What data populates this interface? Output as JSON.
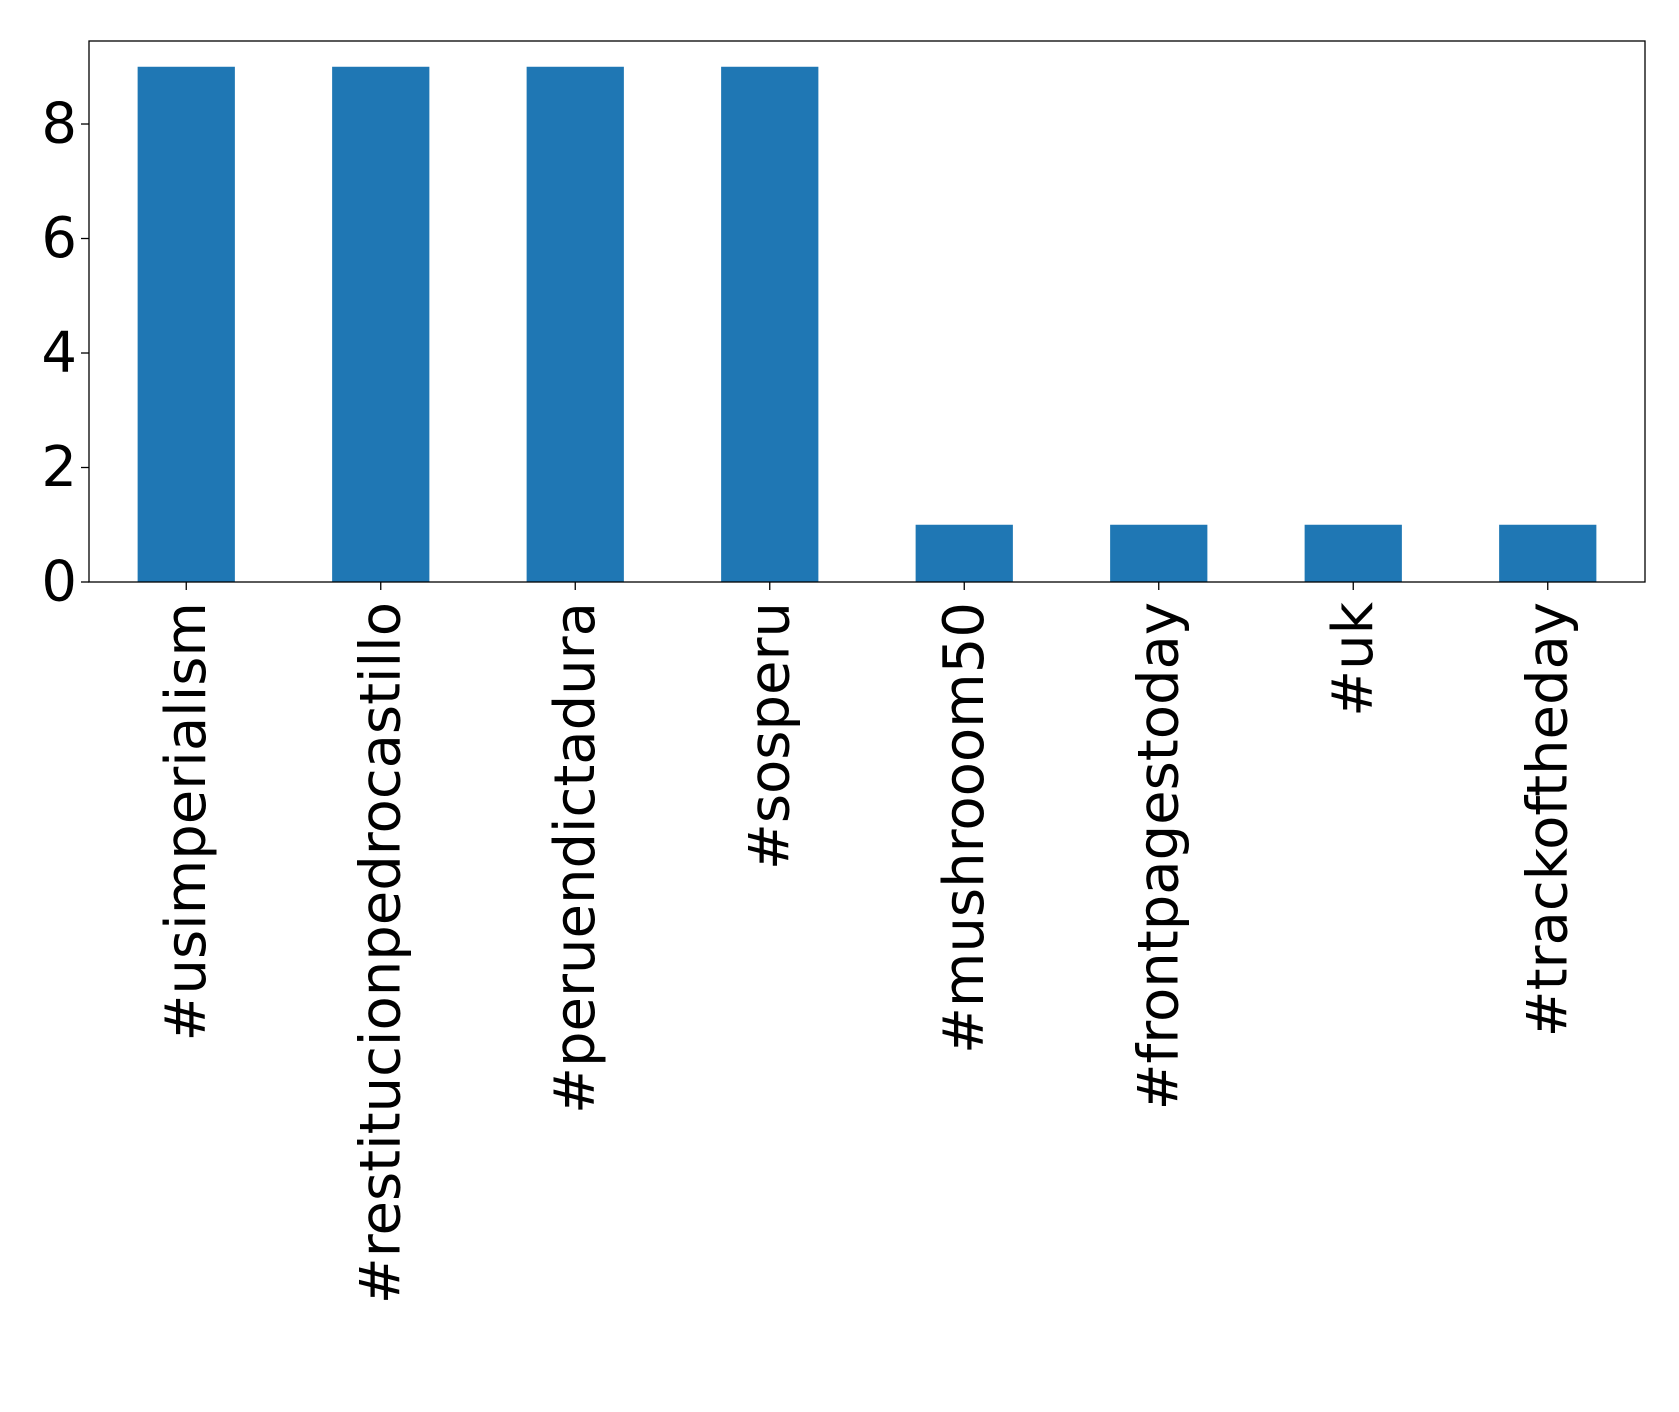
{
  "chart_data": {
    "type": "bar",
    "categories": [
      "#usimperialism",
      "#restitucionpedrocastillo",
      "#peruendictadura",
      "#sosperu",
      "#mushrooom50",
      "#frontpagestoday",
      "#uk",
      "#trackoftheday"
    ],
    "values": [
      9,
      9,
      9,
      9,
      1,
      1,
      1,
      1
    ],
    "title": "",
    "xlabel": "",
    "ylabel": "",
    "ylim": [
      0,
      9.45
    ],
    "yticks": [
      "0",
      "2",
      "4",
      "6",
      "8"
    ],
    "grid": false,
    "legend": "none",
    "bar_color": "#1f77b4"
  }
}
